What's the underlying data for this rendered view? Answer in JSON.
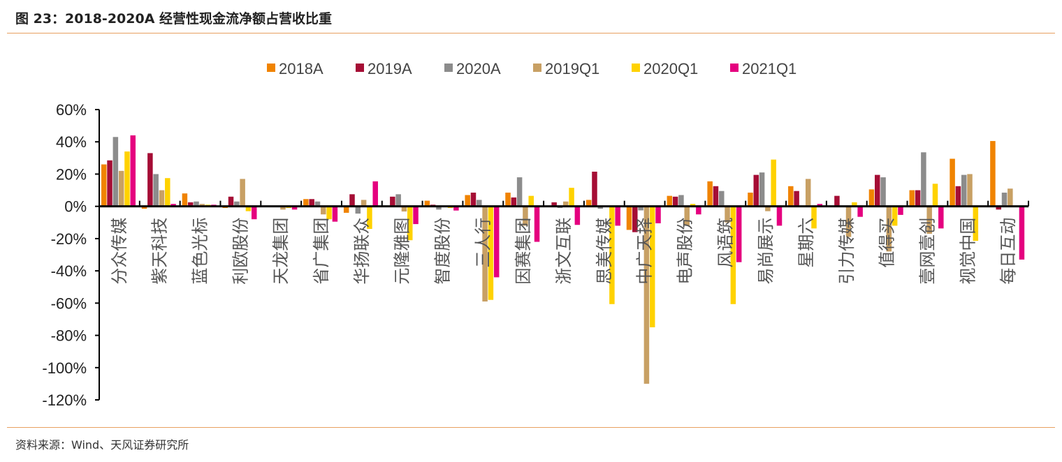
{
  "title": "图 23：2018-2020A 经营性现金流净额占营收比重",
  "source": "资料来源：Wind、天风证券研究所",
  "chart_data": {
    "type": "bar",
    "title": "",
    "xlabel": "",
    "ylabel": "",
    "ylim": [
      -120,
      60
    ],
    "yticks": [
      60,
      40,
      20,
      0,
      -20,
      -40,
      -60,
      -80,
      -100,
      -120
    ],
    "ytick_labels": [
      "60%",
      "40%",
      "20%",
      "0%",
      "-20%",
      "-40%",
      "-60%",
      "-80%",
      "-100%",
      "-120%"
    ],
    "grid": false,
    "legend": "top-center",
    "categories": [
      "分众传媒",
      "紫天科技",
      "蓝色光标",
      "利欧股份",
      "天龙集团",
      "省广集团",
      "华扬联众",
      "元隆雅图",
      "智度股份",
      "三人行",
      "因赛集团",
      "浙文互联",
      "思美传媒",
      "中广天择",
      "电声股份",
      "风语筑",
      "易尚展示",
      "星期六",
      "引力传媒",
      "值得买",
      "壹网壹创",
      "视觉中国",
      "每日互动"
    ],
    "series": [
      {
        "name": "2018A",
        "color": "#F08300",
        "values": [
          26,
          -1.5,
          8,
          -1,
          -0.5,
          4.5,
          -4,
          0,
          3.5,
          7,
          8.5,
          0,
          4,
          -14.6,
          6.5,
          15.5,
          8.5,
          12.5,
          0,
          10.5,
          10,
          29.5,
          40.5
        ]
      },
      {
        "name": "2019A",
        "color": "#A50D35",
        "values": [
          28.5,
          33,
          2.5,
          6,
          0,
          4.5,
          7.5,
          6,
          1,
          8.5,
          5.5,
          2.5,
          21.5,
          -16,
          6,
          12.5,
          19.5,
          9.5,
          6.5,
          19.5,
          10,
          12.5,
          -2
        ]
      },
      {
        "name": "2020A",
        "color": "#8C8C8C",
        "values": [
          43,
          20,
          3,
          3,
          0.3,
          3,
          -4.5,
          7.5,
          -2,
          4,
          18,
          -1,
          -1.5,
          -2.5,
          7,
          9.5,
          21,
          0,
          0,
          18,
          33.5,
          19.5,
          8.5
        ]
      },
      {
        "name": "2019Q1",
        "color": "#C8A064",
        "values": [
          22,
          10,
          1.5,
          17,
          -2,
          -5,
          4,
          -3.2,
          0,
          -59,
          -12,
          3,
          0.5,
          -110,
          -12,
          -10,
          -3,
          17,
          -19,
          -28,
          -17,
          20,
          11
        ]
      },
      {
        "name": "2020Q1",
        "color": "#FFD200",
        "values": [
          34,
          17.5,
          1,
          -3,
          -1,
          -8,
          -14,
          -21,
          -1,
          -58,
          6.5,
          11.5,
          -60.6,
          -75,
          1.5,
          -60.6,
          29,
          -13.7,
          2.5,
          -12,
          14,
          -21.4,
          0
        ]
      },
      {
        "name": "2021Q1",
        "color": "#E5007F",
        "values": [
          44,
          1.5,
          1,
          -8,
          -2,
          -9.5,
          15.5,
          -11,
          -2.6,
          -44,
          -22,
          -11.5,
          -12,
          -10.5,
          -5,
          -34.6,
          -12,
          1.5,
          -6.5,
          -5.3,
          -13.7,
          0.3,
          -33
        ]
      }
    ]
  }
}
